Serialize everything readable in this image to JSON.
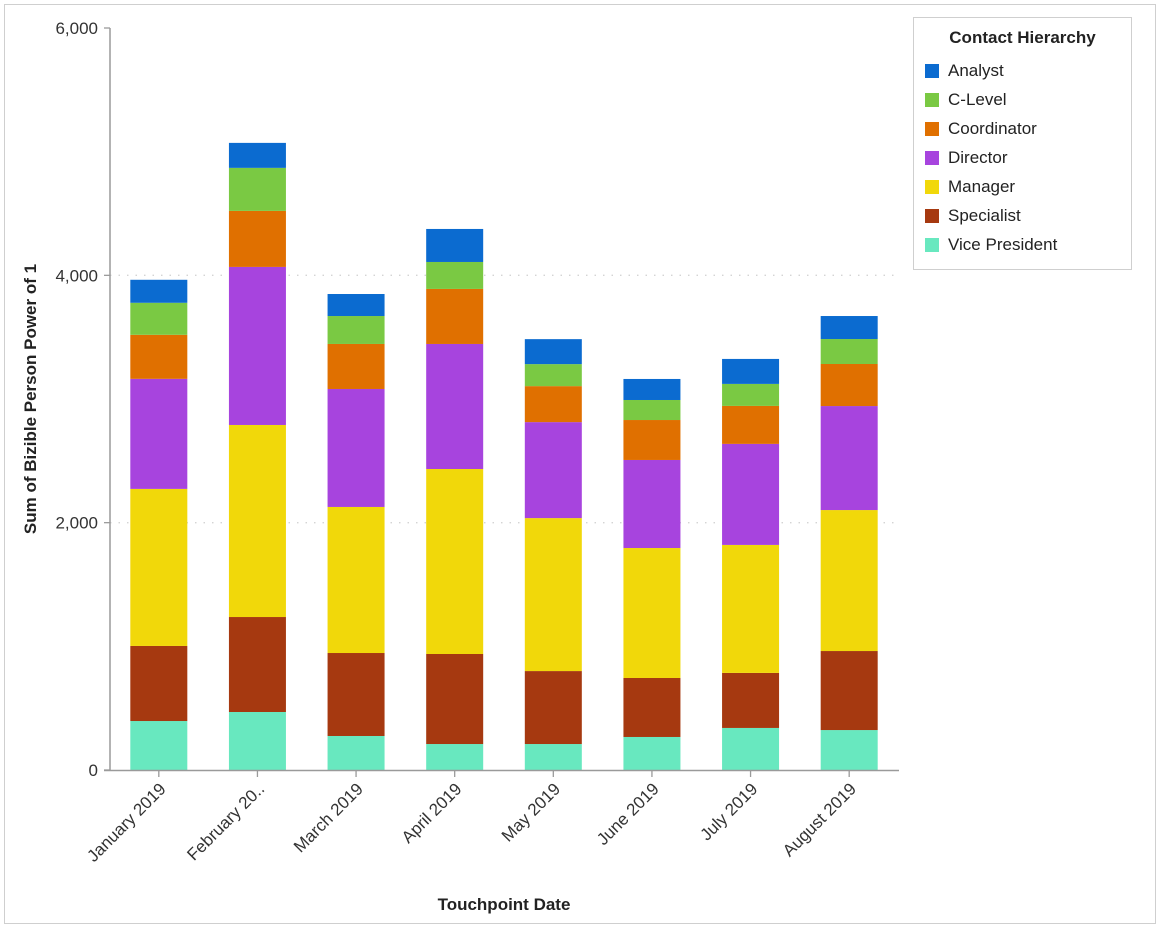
{
  "chart_data": {
    "type": "bar",
    "stacked": true,
    "title": "",
    "xlabel": "Touchpoint Date",
    "ylabel": "Sum of Bizible Person Power of 1",
    "ylim": [
      0,
      6000
    ],
    "yticks": [
      0,
      2000,
      4000,
      6000
    ],
    "ytick_labels": [
      "0",
      "2,000",
      "4,000",
      "6,000"
    ],
    "grid": "horizontal dotted",
    "categories": [
      "January 2019",
      "February 20..",
      "March 2019",
      "April 2019",
      "May 2019",
      "June 2019",
      "July 2019",
      "August 2019"
    ],
    "legend": {
      "title": "Contact Hierarchy",
      "position": "top-right"
    },
    "series": [
      {
        "name": "Vice President",
        "color": "#68E8BF",
        "values": [
          396,
          469,
          275,
          210,
          210,
          267,
          340,
          323
        ]
      },
      {
        "name": "Specialist",
        "color": "#A63910",
        "values": [
          607,
          768,
          671,
          728,
          590,
          477,
          445,
          639
        ]
      },
      {
        "name": "Manager",
        "color": "#F1D80A",
        "values": [
          1270,
          1553,
          1181,
          1496,
          1237,
          1051,
          1035,
          1140
        ]
      },
      {
        "name": "Director",
        "color": "#A744DE",
        "values": [
          890,
          1278,
          954,
          1011,
          776,
          712,
          817,
          841
        ]
      },
      {
        "name": "Coordinator",
        "color": "#E07000",
        "values": [
          356,
          453,
          364,
          445,
          291,
          323,
          307,
          340
        ]
      },
      {
        "name": "C-Level",
        "color": "#7AC943",
        "values": [
          259,
          348,
          226,
          218,
          178,
          162,
          178,
          202
        ]
      },
      {
        "name": "Analyst",
        "color": "#0B6BD0",
        "values": [
          186,
          202,
          178,
          267,
          202,
          170,
          202,
          186
        ]
      }
    ],
    "legend_order": [
      "Analyst",
      "C-Level",
      "Coordinator",
      "Director",
      "Manager",
      "Specialist",
      "Vice President"
    ]
  }
}
